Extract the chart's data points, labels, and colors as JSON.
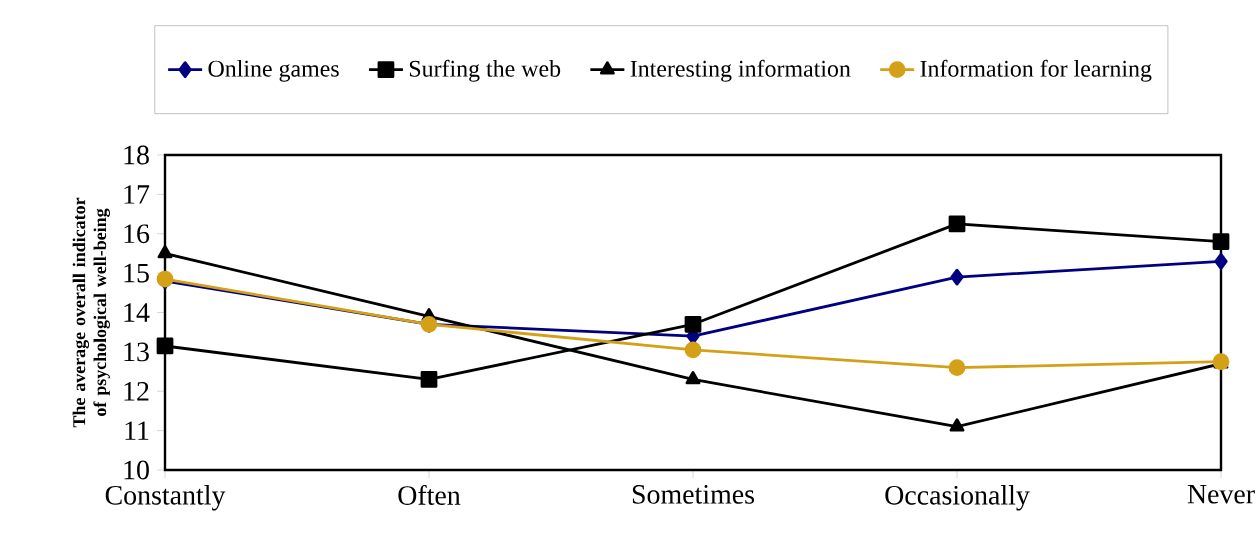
{
  "chart_data": {
    "type": "line",
    "ylabel": "The average overall indicator of psychological well-being",
    "categories": [
      "Constantly",
      "Often",
      "Sometimes",
      "Occasionally",
      "Never"
    ],
    "series": [
      {
        "name": "Online games",
        "color": "#000080",
        "marker": "diamond",
        "values": [
          14.8,
          13.7,
          13.4,
          14.9,
          15.3
        ]
      },
      {
        "name": "Surfing the web",
        "color": "#000000",
        "marker": "square",
        "values": [
          13.15,
          12.3,
          13.7,
          16.25,
          15.8
        ]
      },
      {
        "name": "Interesting information",
        "color": "#000000",
        "marker": "triangle",
        "values": [
          15.5,
          13.9,
          12.3,
          11.1,
          12.7
        ]
      },
      {
        "name": "Information for learning",
        "color": "#d4a017",
        "marker": "circle",
        "values": [
          14.85,
          13.7,
          13.05,
          12.6,
          12.75
        ]
      }
    ],
    "ylim": [
      10,
      18
    ],
    "yticks": [
      10,
      11,
      12,
      13,
      14,
      15,
      16,
      17,
      18
    ],
    "grid": false,
    "legend": "top"
  }
}
